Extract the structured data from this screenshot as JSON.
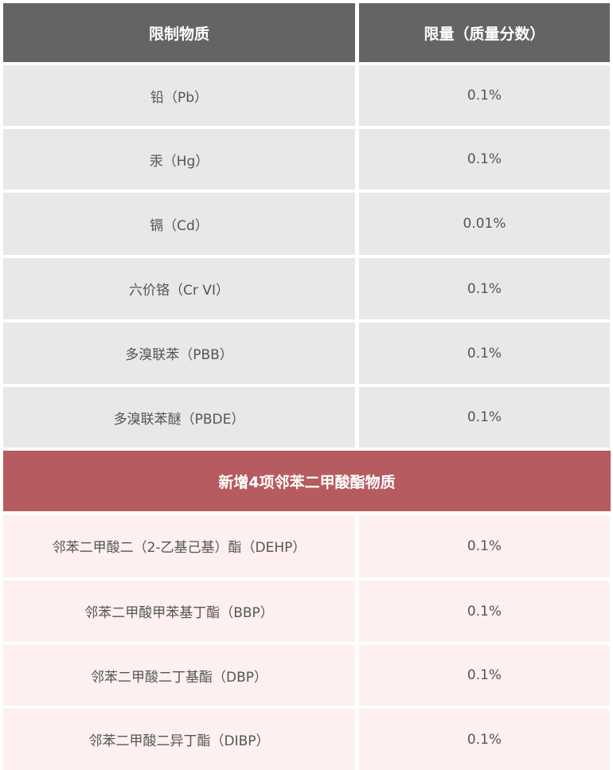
{
  "header": {
    "col1": "限制物质",
    "col2": "限量（质量分数）"
  },
  "base_rows": [
    {
      "substance": "铅（Pb）",
      "limit": "0.1%"
    },
    {
      "substance": "汞（Hg）",
      "limit": "0.1%"
    },
    {
      "substance": "镉（Cd）",
      "limit": "0.01%"
    },
    {
      "substance": "六价铬（Cr VI）",
      "limit": "0.1%"
    },
    {
      "substance": "多溴联苯（PBB）",
      "limit": "0.1%"
    },
    {
      "substance": "多溴联苯醚（PBDE）",
      "limit": "0.1%"
    }
  ],
  "section_title": "新增4项邻苯二甲酸酯物质",
  "added_rows": [
    {
      "substance": "邻苯二甲酸二（2-乙基己基）酯（DEHP）",
      "limit": "0.1%"
    },
    {
      "substance": "邻苯二甲酸甲苯基丁酯（BBP）",
      "limit": "0.1%"
    },
    {
      "substance": "邻苯二甲酸二丁基酯（DBP）",
      "limit": "0.1%"
    },
    {
      "substance": "邻苯二甲酸二异丁酯（DIBP）",
      "limit": "0.1%"
    }
  ],
  "colors": {
    "header_bg": "#646464",
    "base_row_bg": "#e8e8ea",
    "section_bg": "#b65b5f",
    "added_row_bg": "#fdf0ef"
  }
}
